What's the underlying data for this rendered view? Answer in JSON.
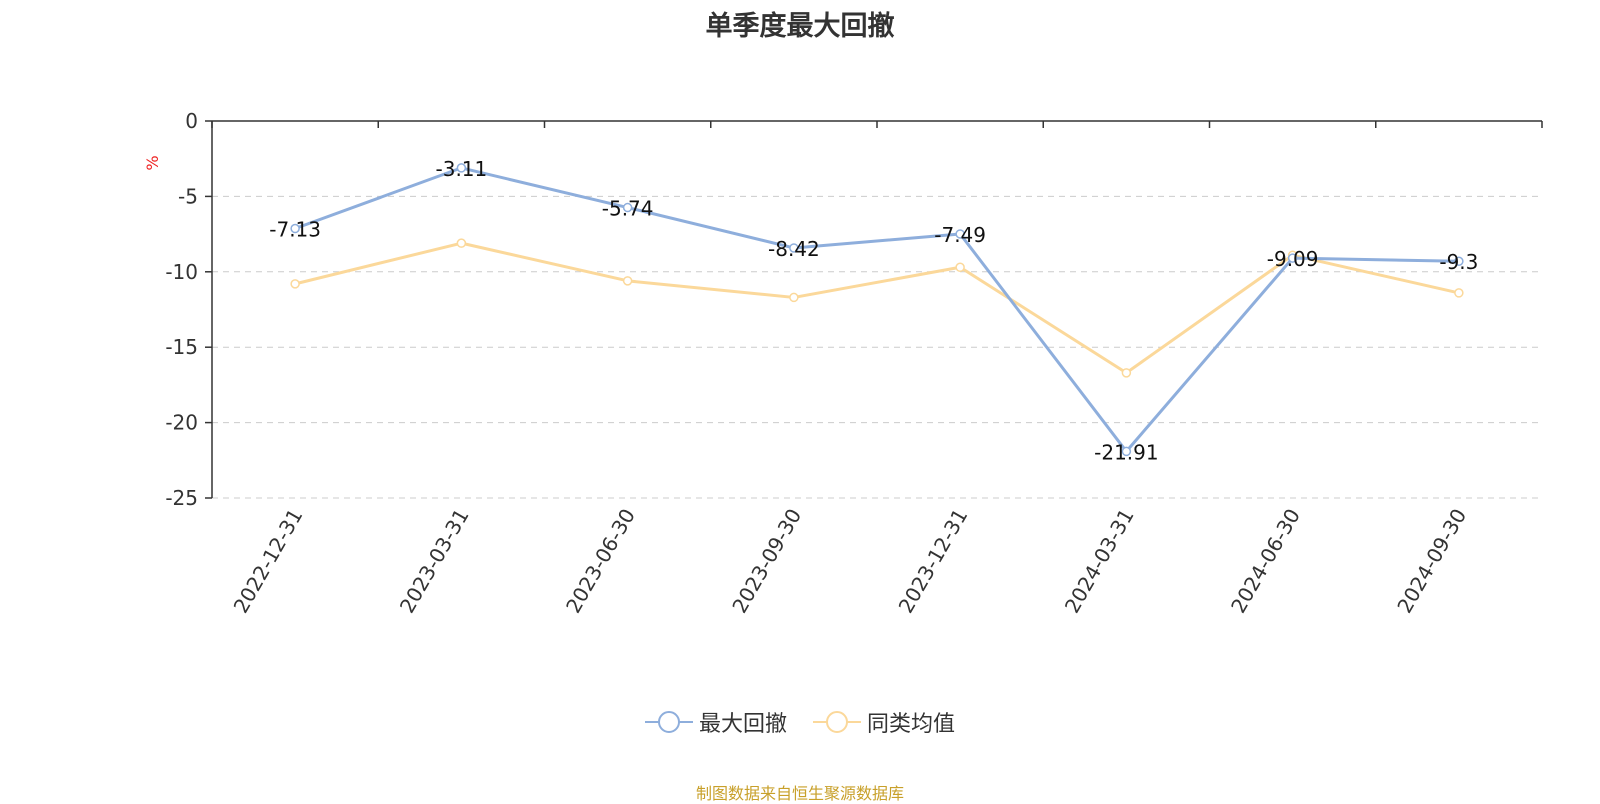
{
  "chart_data": {
    "type": "line",
    "title": "单季度最大回撤",
    "ylabel": "%",
    "categories": [
      "2022-12-31",
      "2023-03-31",
      "2023-06-30",
      "2023-09-30",
      "2023-12-31",
      "2024-03-31",
      "2024-06-30",
      "2024-09-30"
    ],
    "series": [
      {
        "name": "最大回撤",
        "color": "#8eaedc",
        "values": [
          -7.13,
          -3.11,
          -5.74,
          -8.42,
          -7.49,
          -21.91,
          -9.09,
          -9.3
        ],
        "show_labels": true
      },
      {
        "name": "同类均值",
        "color": "#fbd89a",
        "values": [
          -10.8,
          -8.1,
          -10.6,
          -11.7,
          -9.7,
          -16.7,
          -8.9,
          -11.4
        ],
        "show_labels": false
      }
    ],
    "ylim": [
      -25,
      0
    ],
    "yticks": [
      0,
      -5,
      -10,
      -15,
      -20,
      -25
    ],
    "grid": true,
    "legend_position": "bottom-center"
  },
  "source": "制图数据来自恒生聚源数据库"
}
